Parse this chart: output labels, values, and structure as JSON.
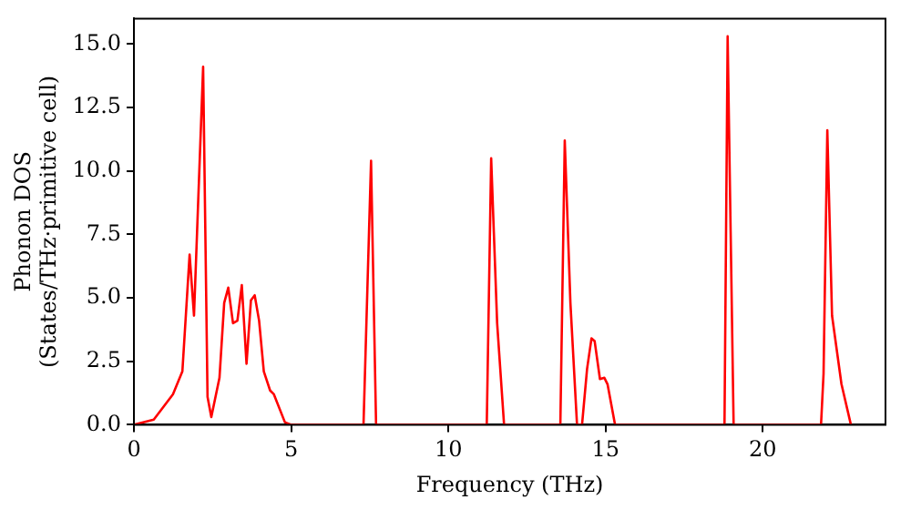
{
  "chart_data": {
    "type": "line",
    "xlabel": "Frequency (THz)",
    "ylabel": "Phonon DOS\n(States/THz·primitive cell)",
    "xlim": [
      0,
      23.9
    ],
    "ylim": [
      0,
      16
    ],
    "xticks": [
      0,
      5,
      10,
      15,
      20
    ],
    "yticks": [
      {
        "value": 0,
        "label": "0.0"
      },
      {
        "value": 2.5,
        "label": "2.5"
      },
      {
        "value": 5,
        "label": "5.0"
      },
      {
        "value": 7.5,
        "label": "7.5"
      },
      {
        "value": 10,
        "label": "10.0"
      },
      {
        "value": 12.5,
        "label": "12.5"
      },
      {
        "value": 15,
        "label": "15.0"
      }
    ],
    "grid": false,
    "legend": false,
    "marker": "none",
    "line_style": "solid",
    "series": [
      {
        "color": "#ff0000",
        "x": [
          0,
          0.63,
          1.24,
          1.54,
          1.77,
          1.91,
          2.2,
          2.34,
          2.46,
          2.72,
          2.87,
          3.0,
          3.15,
          3.29,
          3.43,
          3.58,
          3.72,
          3.84,
          3.98,
          4.13,
          4.33,
          4.45,
          4.8,
          5.0,
          7.3,
          7.54,
          7.7,
          11.22,
          11.36,
          11.55,
          11.77,
          13.56,
          13.7,
          13.88,
          14.09,
          14.25,
          14.41,
          14.55,
          14.65,
          14.82,
          14.96,
          15.06,
          15.3,
          18.78,
          18.88,
          19.07,
          21.85,
          21.93,
          22.05,
          22.2,
          22.5,
          22.8
        ],
        "values": [
          0,
          0.2,
          1.2,
          2.1,
          6.7,
          4.3,
          14.1,
          1.1,
          0.3,
          1.85,
          4.8,
          5.4,
          4.0,
          4.1,
          5.5,
          2.4,
          4.9,
          5.1,
          4.1,
          2.1,
          1.35,
          1.2,
          0.1,
          0,
          0,
          10.4,
          0,
          0,
          10.5,
          4.0,
          0,
          0,
          11.2,
          4.8,
          0,
          0,
          2.2,
          3.4,
          3.3,
          1.8,
          1.85,
          1.6,
          0,
          0,
          15.3,
          0,
          0,
          2.0,
          11.6,
          4.3,
          1.6,
          0
        ]
      }
    ]
  }
}
